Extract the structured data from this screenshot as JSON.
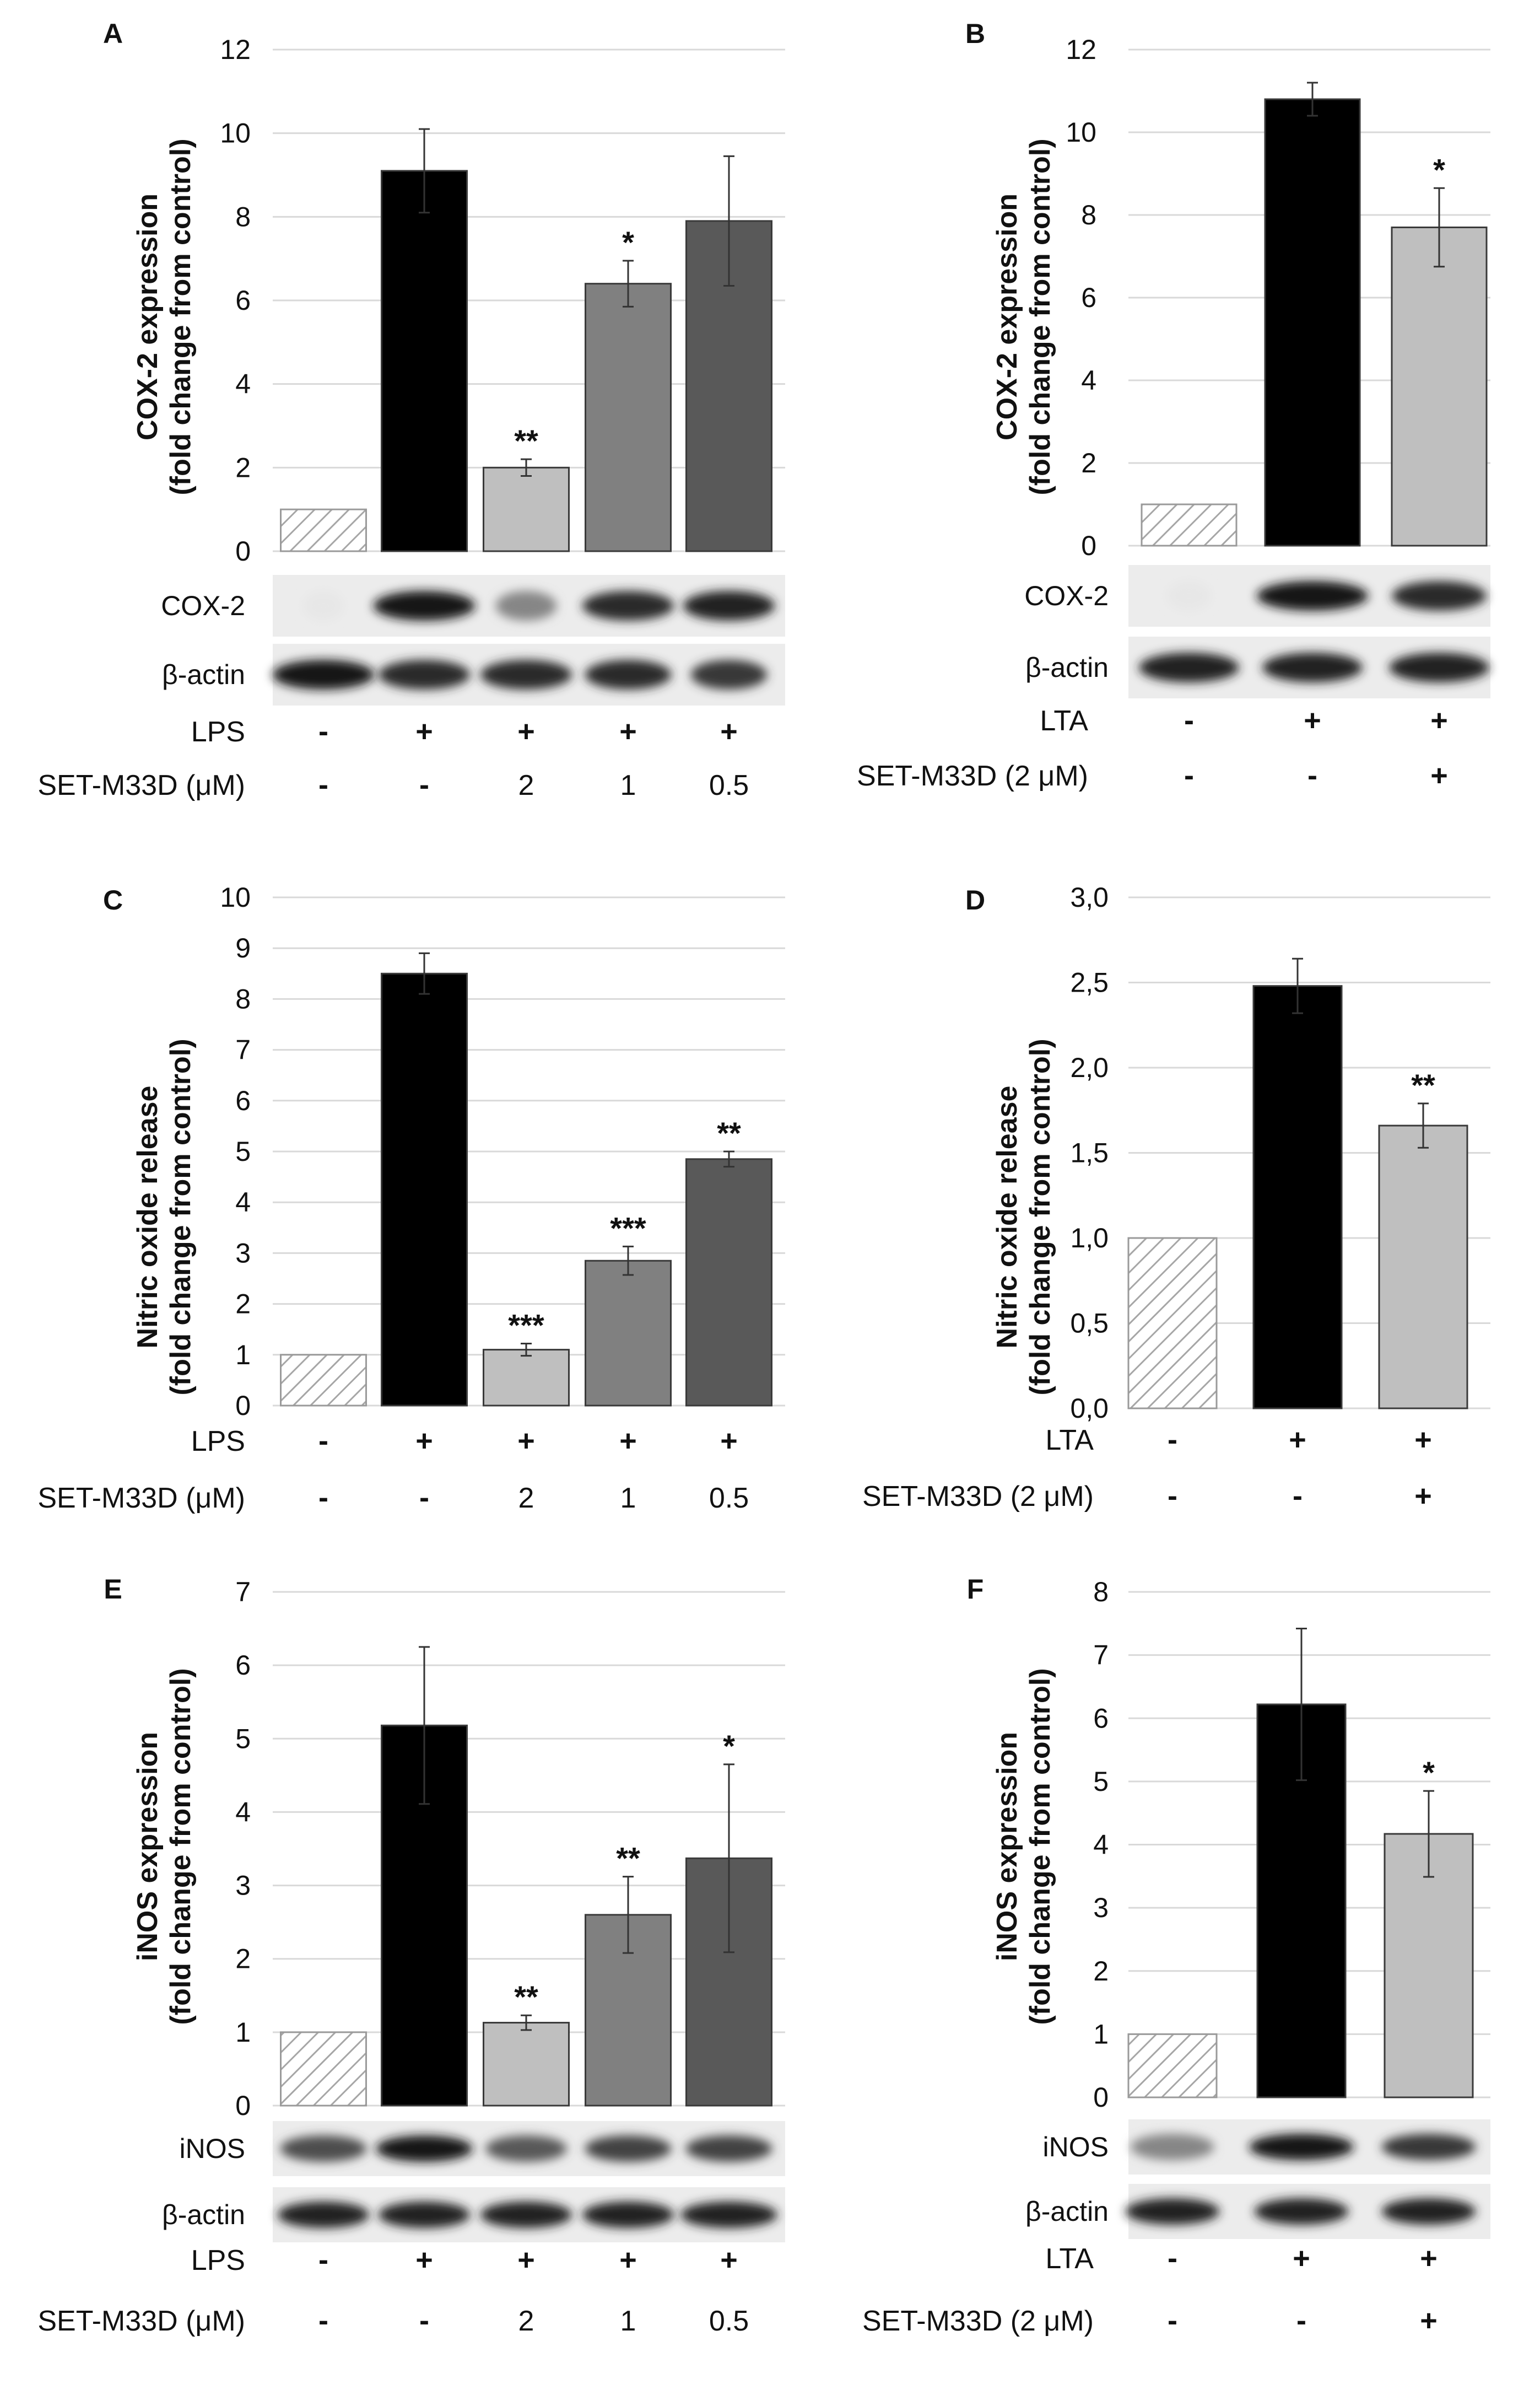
{
  "chart_data": [
    {
      "panel": "A",
      "type": "bar",
      "ylabel": [
        "COX-2 expression",
        "(fold change from control)"
      ],
      "ylim": [
        0,
        12
      ],
      "yticks": [
        "0",
        "2",
        "4",
        "6",
        "8",
        "10",
        "12"
      ],
      "tick_values": [
        0,
        2,
        4,
        6,
        8,
        10,
        12
      ],
      "values": [
        1.0,
        9.1,
        2.0,
        6.4,
        7.9
      ],
      "errors": [
        0.0,
        1.0,
        0.2,
        0.55,
        1.55
      ],
      "significance": [
        "",
        "",
        "**",
        "*",
        ""
      ],
      "fills": [
        "hatch",
        "#000000",
        "#bfbfbf",
        "#808080",
        "#595959"
      ],
      "blots": [
        {
          "label": "COX-2",
          "bands": [
            0.02,
            0.95,
            0.45,
            0.85,
            0.9
          ],
          "sizes": [
            0.4,
            1.0,
            0.6,
            0.9,
            0.9
          ]
        },
        {
          "label": "β-actin",
          "bands": [
            0.95,
            0.85,
            0.85,
            0.85,
            0.8
          ],
          "sizes": [
            1,
            0.9,
            0.9,
            0.85,
            0.75
          ]
        }
      ],
      "conditions": [
        {
          "label": "LPS",
          "values": [
            "-",
            "+",
            "+",
            "+",
            "+"
          ]
        },
        {
          "label": "SET-M33D (μM)",
          "values": [
            "-",
            "-",
            "2",
            "1",
            "0.5"
          ]
        }
      ]
    },
    {
      "panel": "B",
      "type": "bar",
      "ylabel": [
        "COX-2 expression",
        "(fold change from control)"
      ],
      "ylim": [
        0,
        12
      ],
      "yticks": [
        "0",
        "2",
        "4",
        "6",
        "8",
        "10",
        "12"
      ],
      "tick_values": [
        0,
        2,
        4,
        6,
        8,
        10,
        12
      ],
      "values": [
        1.0,
        10.8,
        7.7
      ],
      "errors": [
        0.0,
        0.4,
        0.95
      ],
      "significance": [
        "",
        "",
        "*"
      ],
      "fills": [
        "hatch",
        "#000000",
        "#bfbfbf"
      ],
      "blots": [
        {
          "label": "COX-2",
          "bands": [
            0.02,
            0.95,
            0.85
          ],
          "sizes": [
            0.4,
            1.0,
            0.85
          ]
        },
        {
          "label": "β-actin",
          "bands": [
            0.9,
            0.9,
            0.9
          ],
          "sizes": [
            0.9,
            0.9,
            0.9
          ]
        }
      ],
      "conditions": [
        {
          "label": "LTA",
          "values": [
            "-",
            "+",
            "+"
          ]
        },
        {
          "label": "SET-M33D (2 μM)",
          "values": [
            "-",
            "-",
            "+"
          ]
        }
      ]
    },
    {
      "panel": "C",
      "type": "bar",
      "ylabel": [
        "Nitric oxide release",
        "(fold change from control)"
      ],
      "ylim": [
        0,
        10
      ],
      "yticks": [
        "0",
        "1",
        "2",
        "3",
        "4",
        "5",
        "6",
        "7",
        "8",
        "9",
        "10"
      ],
      "tick_values": [
        0,
        1,
        2,
        3,
        4,
        5,
        6,
        7,
        8,
        9,
        10
      ],
      "values": [
        1.0,
        8.5,
        1.1,
        2.85,
        4.85
      ],
      "errors": [
        0.0,
        0.4,
        0.12,
        0.28,
        0.15
      ],
      "significance": [
        "",
        "",
        "***",
        "***",
        "**"
      ],
      "fills": [
        "hatch",
        "#000000",
        "#bfbfbf",
        "#808080",
        "#595959"
      ],
      "blots": [],
      "conditions": [
        {
          "label": "LPS",
          "values": [
            "-",
            "+",
            "+",
            "+",
            "+"
          ]
        },
        {
          "label": "SET-M33D (μM)",
          "values": [
            "-",
            "-",
            "2",
            "1",
            "0.5"
          ]
        }
      ]
    },
    {
      "panel": "D",
      "type": "bar",
      "ylabel": [
        "Nitric oxide release",
        "(fold change from control)"
      ],
      "ylim": [
        0,
        3
      ],
      "yticks": [
        "0,0",
        "0,5",
        "1,0",
        "1,5",
        "2,0",
        "2,5",
        "3,0"
      ],
      "tick_values": [
        0,
        0.5,
        1.0,
        1.5,
        2.0,
        2.5,
        3.0
      ],
      "values": [
        1.0,
        2.48,
        1.66
      ],
      "errors": [
        0.0,
        0.16,
        0.13
      ],
      "significance": [
        "",
        "",
        "**"
      ],
      "fills": [
        "hatch",
        "#000000",
        "#bfbfbf"
      ],
      "blots": [],
      "conditions": [
        {
          "label": "LTA",
          "values": [
            "-",
            "+",
            "+"
          ]
        },
        {
          "label": "SET-M33D (2 μM)",
          "values": [
            "-",
            "-",
            "+"
          ]
        }
      ]
    },
    {
      "panel": "E",
      "type": "bar",
      "ylabel": [
        "iNOS expression",
        "(fold change from control)"
      ],
      "ylim": [
        0,
        7
      ],
      "yticks": [
        "0",
        "1",
        "2",
        "3",
        "4",
        "5",
        "6",
        "7"
      ],
      "tick_values": [
        0,
        1,
        2,
        3,
        4,
        5,
        6,
        7
      ],
      "values": [
        1.0,
        5.18,
        1.13,
        2.6,
        3.37
      ],
      "errors": [
        0.0,
        1.07,
        0.1,
        0.52,
        1.28
      ],
      "significance": [
        "",
        "",
        "**",
        "**",
        "*"
      ],
      "fills": [
        "hatch",
        "#000000",
        "#bfbfbf",
        "#808080",
        "#595959"
      ],
      "blots": [
        {
          "label": "iNOS",
          "bands": [
            0.7,
            0.95,
            0.65,
            0.75,
            0.75
          ],
          "sizes": [
            0.85,
            0.95,
            0.8,
            0.85,
            0.85
          ]
        },
        {
          "label": "β-actin",
          "bands": [
            0.9,
            0.9,
            0.9,
            0.9,
            0.9
          ],
          "sizes": [
            0.9,
            0.9,
            0.9,
            0.9,
            0.95
          ]
        }
      ],
      "conditions": [
        {
          "label": "LPS",
          "values": [
            "-",
            "+",
            "+",
            "+",
            "+"
          ]
        },
        {
          "label": "SET-M33D (μM)",
          "values": [
            "-",
            "-",
            "2",
            "1",
            "0.5"
          ]
        }
      ]
    },
    {
      "panel": "F",
      "type": "bar",
      "ylabel": [
        "iNOS expression",
        "(fold change from control)"
      ],
      "ylim": [
        0,
        8
      ],
      "yticks": [
        "0",
        "1",
        "2",
        "3",
        "4",
        "5",
        "6",
        "7",
        "8"
      ],
      "tick_values": [
        0,
        1,
        2,
        3,
        4,
        5,
        6,
        7,
        8
      ],
      "values": [
        1.0,
        6.22,
        4.17
      ],
      "errors": [
        0.0,
        1.2,
        0.68
      ],
      "significance": [
        "",
        "",
        "*"
      ],
      "fills": [
        "hatch",
        "#000000",
        "#bfbfbf"
      ],
      "blots": [
        {
          "label": "iNOS",
          "bands": [
            0.45,
            0.95,
            0.8
          ],
          "sizes": [
            0.8,
            1.0,
            0.9
          ]
        },
        {
          "label": "β-actin",
          "bands": [
            0.9,
            0.9,
            0.9
          ],
          "sizes": [
            0.9,
            0.9,
            0.9
          ]
        }
      ],
      "conditions": [
        {
          "label": "LTA",
          "values": [
            "-",
            "+",
            "+"
          ]
        },
        {
          "label": "SET-M33D (2 μM)",
          "values": [
            "-",
            "-",
            "+"
          ]
        }
      ]
    }
  ]
}
